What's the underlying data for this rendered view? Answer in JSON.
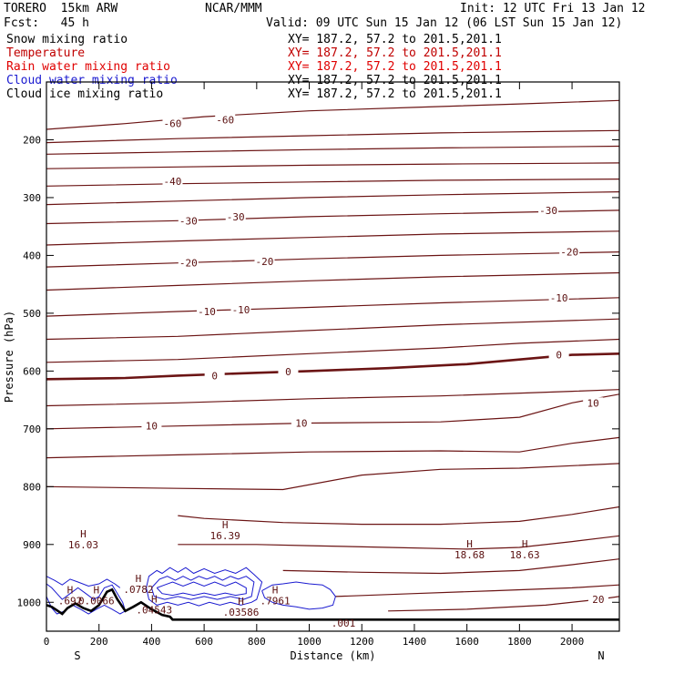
{
  "header": {
    "model": "TORERO  15km ARW",
    "org": "NCAR/MMM",
    "init": "Init: 12 UTC Fri 13 Jan 12",
    "fcst": "Fcst:   45 h",
    "valid": "Valid: 09 UTC Sun 15 Jan 12 (06 LST Sun 15 Jan 12)"
  },
  "legend": [
    {
      "label": "Snow mixing ratio",
      "xy": "XY= 187.2, 57.2 to 201.5,201.1",
      "color": "#000000",
      "xy_color": "#000000"
    },
    {
      "label": "Temperature",
      "xy": "XY= 187.2, 57.2 to 201.5,201.1",
      "color": "#c00000",
      "xy_color": "#c00000"
    },
    {
      "label": "Rain water mixing ratio",
      "xy": "XY= 187.2, 57.2 to 201.5,201.1",
      "color": "#e00000",
      "xy_color": "#e00000"
    },
    {
      "label": "Cloud water mixing ratio",
      "xy": "XY= 187.2, 57.2 to 201.5,201.1",
      "color": "#1a1ad0",
      "xy_color": "#000000"
    },
    {
      "label": "Cloud ice mixing ratio",
      "xy": "XY= 187.2, 57.2 to 201.5,201.1",
      "color": "#000000",
      "xy_color": "#000000"
    }
  ],
  "chart_data": {
    "type": "line",
    "xlabel": "Distance (km)",
    "ylabel": "Pressure (hPa)",
    "xlim": [
      0,
      2180
    ],
    "ylim": [
      1050,
      100
    ],
    "x_ticks": [
      0,
      200,
      400,
      600,
      800,
      1000,
      1200,
      1400,
      1600,
      1800,
      2000
    ],
    "y_ticks": [
      200,
      300,
      400,
      500,
      600,
      700,
      800,
      900,
      1000
    ],
    "x_ends": {
      "left": "S",
      "right": "N"
    },
    "colors": {
      "temperature": "#6b1414",
      "freezing": "#6b1414",
      "cloud_water": "#1a1ad0",
      "rain": "#c00000",
      "terrain": "#000000"
    },
    "temperature_isotherms": [
      {
        "x": [
          0,
          300,
          600,
          1000,
          1400,
          1800,
          2180
        ],
        "y": [
          182,
          172,
          160,
          150,
          144,
          138,
          132
        ]
      },
      {
        "x": [
          0,
          500,
          1000,
          1500,
          2180
        ],
        "y": [
          205,
          198,
          193,
          188,
          184
        ]
      },
      {
        "x": [
          0,
          500,
          1000,
          1500,
          2180
        ],
        "y": [
          225,
          221,
          217,
          214,
          211
        ]
      },
      {
        "x": [
          0,
          500,
          1000,
          1500,
          2180
        ],
        "y": [
          250,
          247,
          244,
          242,
          240
        ]
      },
      {
        "x": [
          0,
          500,
          1000,
          1500,
          2180
        ],
        "y": [
          280,
          276,
          273,
          270,
          268
        ]
      },
      {
        "x": [
          0,
          500,
          1000,
          1500,
          2180
        ],
        "y": [
          312,
          306,
          300,
          295,
          290
        ]
      },
      {
        "x": [
          0,
          500,
          1000,
          1500,
          2180
        ],
        "y": [
          345,
          340,
          333,
          328,
          322
        ]
      },
      {
        "x": [
          0,
          500,
          1000,
          1500,
          2180
        ],
        "y": [
          382,
          375,
          369,
          363,
          358
        ]
      },
      {
        "x": [
          0,
          500,
          1000,
          1500,
          2180
        ],
        "y": [
          420,
          413,
          406,
          400,
          394
        ]
      },
      {
        "x": [
          0,
          500,
          1000,
          1500,
          2180
        ],
        "y": [
          460,
          452,
          444,
          437,
          430
        ]
      },
      {
        "x": [
          0,
          500,
          1000,
          1500,
          2180
        ],
        "y": [
          505,
          497,
          490,
          482,
          473
        ]
      },
      {
        "x": [
          0,
          500,
          1000,
          1500,
          2180
        ],
        "y": [
          545,
          540,
          530,
          520,
          510
        ]
      },
      {
        "x": [
          0,
          500,
          1000,
          1500,
          1800,
          2180
        ],
        "y": [
          585,
          580,
          570,
          560,
          552,
          545
        ]
      },
      {
        "x": [
          0,
          500,
          1000,
          1500,
          2000,
          2180
        ],
        "y": [
          660,
          655,
          648,
          643,
          635,
          632
        ]
      },
      {
        "x": [
          0,
          500,
          1000,
          1500,
          1800,
          2000,
          2180
        ],
        "y": [
          700,
          695,
          690,
          688,
          680,
          655,
          640
        ]
      },
      {
        "x": [
          0,
          500,
          1000,
          1500,
          1800,
          2000,
          2180
        ],
        "y": [
          750,
          745,
          740,
          738,
          740,
          725,
          715
        ]
      },
      {
        "x": [
          0,
          500,
          900,
          1200,
          1500,
          1800,
          2180
        ],
        "y": [
          800,
          803,
          805,
          780,
          770,
          768,
          760
        ]
      },
      {
        "x": [
          500,
          600,
          900,
          1200,
          1500,
          1800,
          2000,
          2180
        ],
        "y": [
          850,
          855,
          862,
          865,
          865,
          860,
          848,
          835
        ]
      },
      {
        "x": [
          500,
          800,
          1000,
          1300,
          1600,
          1800,
          2000,
          2180
        ],
        "y": [
          900,
          900,
          902,
          905,
          908,
          905,
          895,
          885
        ]
      },
      {
        "x": [
          900,
          1200,
          1500,
          1800,
          2000,
          2180
        ],
        "y": [
          945,
          948,
          950,
          945,
          935,
          925
        ]
      },
      {
        "x": [
          1100,
          1400,
          1700,
          2000,
          2180
        ],
        "y": [
          990,
          985,
          980,
          975,
          970
        ]
      },
      {
        "x": [
          1300,
          1600,
          1900,
          2100,
          2180
        ],
        "y": [
          1015,
          1012,
          1005,
          995,
          990
        ]
      }
    ],
    "freezing_line": {
      "x": [
        0,
        300,
        500,
        800,
        1000,
        1300,
        1600,
        1800,
        2000,
        2180
      ],
      "y": [
        614,
        612,
        608,
        603,
        600,
        595,
        588,
        580,
        572,
        570
      ]
    },
    "isotherm_labels": [
      {
        "text": "-60",
        "x": 480,
        "y": 172
      },
      {
        "text": "-60",
        "x": 680,
        "y": 165
      },
      {
        "text": "-40",
        "x": 480,
        "y": 272
      },
      {
        "text": "-30",
        "x": 540,
        "y": 340
      },
      {
        "text": "-30",
        "x": 720,
        "y": 333
      },
      {
        "text": "-30",
        "x": 1910,
        "y": 322
      },
      {
        "text": "-20",
        "x": 540,
        "y": 413
      },
      {
        "text": "-20",
        "x": 830,
        "y": 410
      },
      {
        "text": "-20",
        "x": 1990,
        "y": 394
      },
      {
        "text": "-10",
        "x": 610,
        "y": 497
      },
      {
        "text": "-10",
        "x": 740,
        "y": 494
      },
      {
        "text": "-10",
        "x": 1950,
        "y": 473
      },
      {
        "text": "0",
        "x": 640,
        "y": 608
      },
      {
        "text": "0",
        "x": 920,
        "y": 601
      },
      {
        "text": "0",
        "x": 1950,
        "y": 572
      },
      {
        "text": "10",
        "x": 400,
        "y": 695
      },
      {
        "text": "10",
        "x": 970,
        "y": 690
      },
      {
        "text": "10",
        "x": 2080,
        "y": 655
      },
      {
        "text": "20",
        "x": 2100,
        "y": 995
      }
    ],
    "highs": [
      {
        "label": "H",
        "value": "16.03",
        "x": 140,
        "y": 888
      },
      {
        "label": "H",
        "value": "16.39",
        "x": 680,
        "y": 872
      },
      {
        "label": "H",
        "value": "18.68",
        "x": 1610,
        "y": 905
      },
      {
        "label": "H",
        "value": "18.63",
        "x": 1820,
        "y": 905
      }
    ],
    "cloud_values": [
      {
        "label": "H",
        "value": ".692",
        "x": 90,
        "y": 985
      },
      {
        "label": "H",
        "value": ".7961",
        "x": 870,
        "y": 985
      },
      {
        "label": "",
        "value": ".001",
        "x": 1130,
        "y": 1023
      }
    ],
    "rain_values": [
      {
        "label": "H",
        "value": "0.0066",
        "x": 190,
        "y": 985
      },
      {
        "label": "H",
        "value": ".0782",
        "x": 350,
        "y": 965
      },
      {
        "label": "H",
        "value": ".04543",
        "x": 410,
        "y": 1000
      },
      {
        "label": "H",
        "value": ".03586",
        "x": 740,
        "y": 1004
      }
    ],
    "cloud_contours": [
      {
        "x": [
          380,
          390,
          420,
          440,
          470,
          500,
          530,
          560,
          600,
          640,
          680,
          720,
          760,
          790,
          820,
          800,
          780,
          740,
          700,
          660,
          620,
          580,
          540,
          500,
          460,
          420,
          390,
          380
        ],
        "y": [
          975,
          955,
          945,
          950,
          940,
          948,
          940,
          950,
          942,
          950,
          944,
          950,
          940,
          952,
          965,
          995,
          1000,
          1005,
          1000,
          1005,
          1000,
          1006,
          1000,
          1005,
          1000,
          1005,
          995,
          975
        ]
      },
      {
        "x": [
          400,
          430,
          460,
          490,
          520,
          550,
          580,
          610,
          640,
          670,
          700,
          730,
          760,
          790,
          780,
          750,
          700,
          650,
          600,
          550,
          500,
          450,
          410,
          400
        ],
        "y": [
          975,
          960,
          955,
          962,
          955,
          962,
          955,
          960,
          955,
          962,
          955,
          960,
          955,
          965,
          990,
          995,
          990,
          995,
          990,
          995,
          990,
          995,
          990,
          975
        ]
      },
      {
        "x": [
          420,
          450,
          480,
          520,
          560,
          600,
          640,
          680,
          720,
          760,
          760,
          720,
          680,
          640,
          600,
          560,
          520,
          480,
          440,
          420
        ],
        "y": [
          975,
          970,
          965,
          972,
          965,
          972,
          965,
          972,
          965,
          975,
          985,
          988,
          984,
          988,
          984,
          988,
          984,
          988,
          985,
          975
        ]
      },
      {
        "x": [
          820,
          860,
          900,
          950,
          1000,
          1050,
          1080,
          1100,
          1090,
          1050,
          1000,
          950,
          900,
          860,
          830,
          820
        ],
        "y": [
          980,
          970,
          968,
          965,
          968,
          970,
          978,
          990,
          1005,
          1010,
          1012,
          1008,
          1005,
          1000,
          992,
          980
        ]
      },
      {
        "x": [
          0,
          20,
          40,
          60,
          90,
          120,
          150,
          180,
          200,
          220,
          250,
          270,
          290,
          300,
          280,
          250,
          220,
          190,
          160,
          130,
          100,
          70,
          40,
          20,
          0
        ],
        "y": [
          968,
          975,
          985,
          995,
          985,
          975,
          985,
          995,
          990,
          975,
          970,
          985,
          1000,
          1015,
          1020,
          1012,
          1005,
          1012,
          1020,
          1012,
          1005,
          1015,
          1020,
          1010,
          990
        ]
      },
      {
        "x": [
          0,
          30,
          60,
          90,
          120,
          160,
          200,
          230,
          260,
          280
        ],
        "y": [
          955,
          962,
          970,
          960,
          965,
          972,
          968,
          960,
          968,
          975
        ]
      }
    ],
    "terrain": {
      "x": [
        0,
        20,
        40,
        60,
        80,
        110,
        140,
        170,
        200,
        230,
        250,
        270,
        300,
        330,
        360,
        400,
        440,
        470,
        480,
        2180
      ],
      "y": [
        1005,
        1008,
        1014,
        1020,
        1010,
        1002,
        1010,
        1015,
        1005,
        982,
        978,
        995,
        1015,
        1008,
        1000,
        1012,
        1022,
        1025,
        1030,
        1030
      ]
    }
  }
}
